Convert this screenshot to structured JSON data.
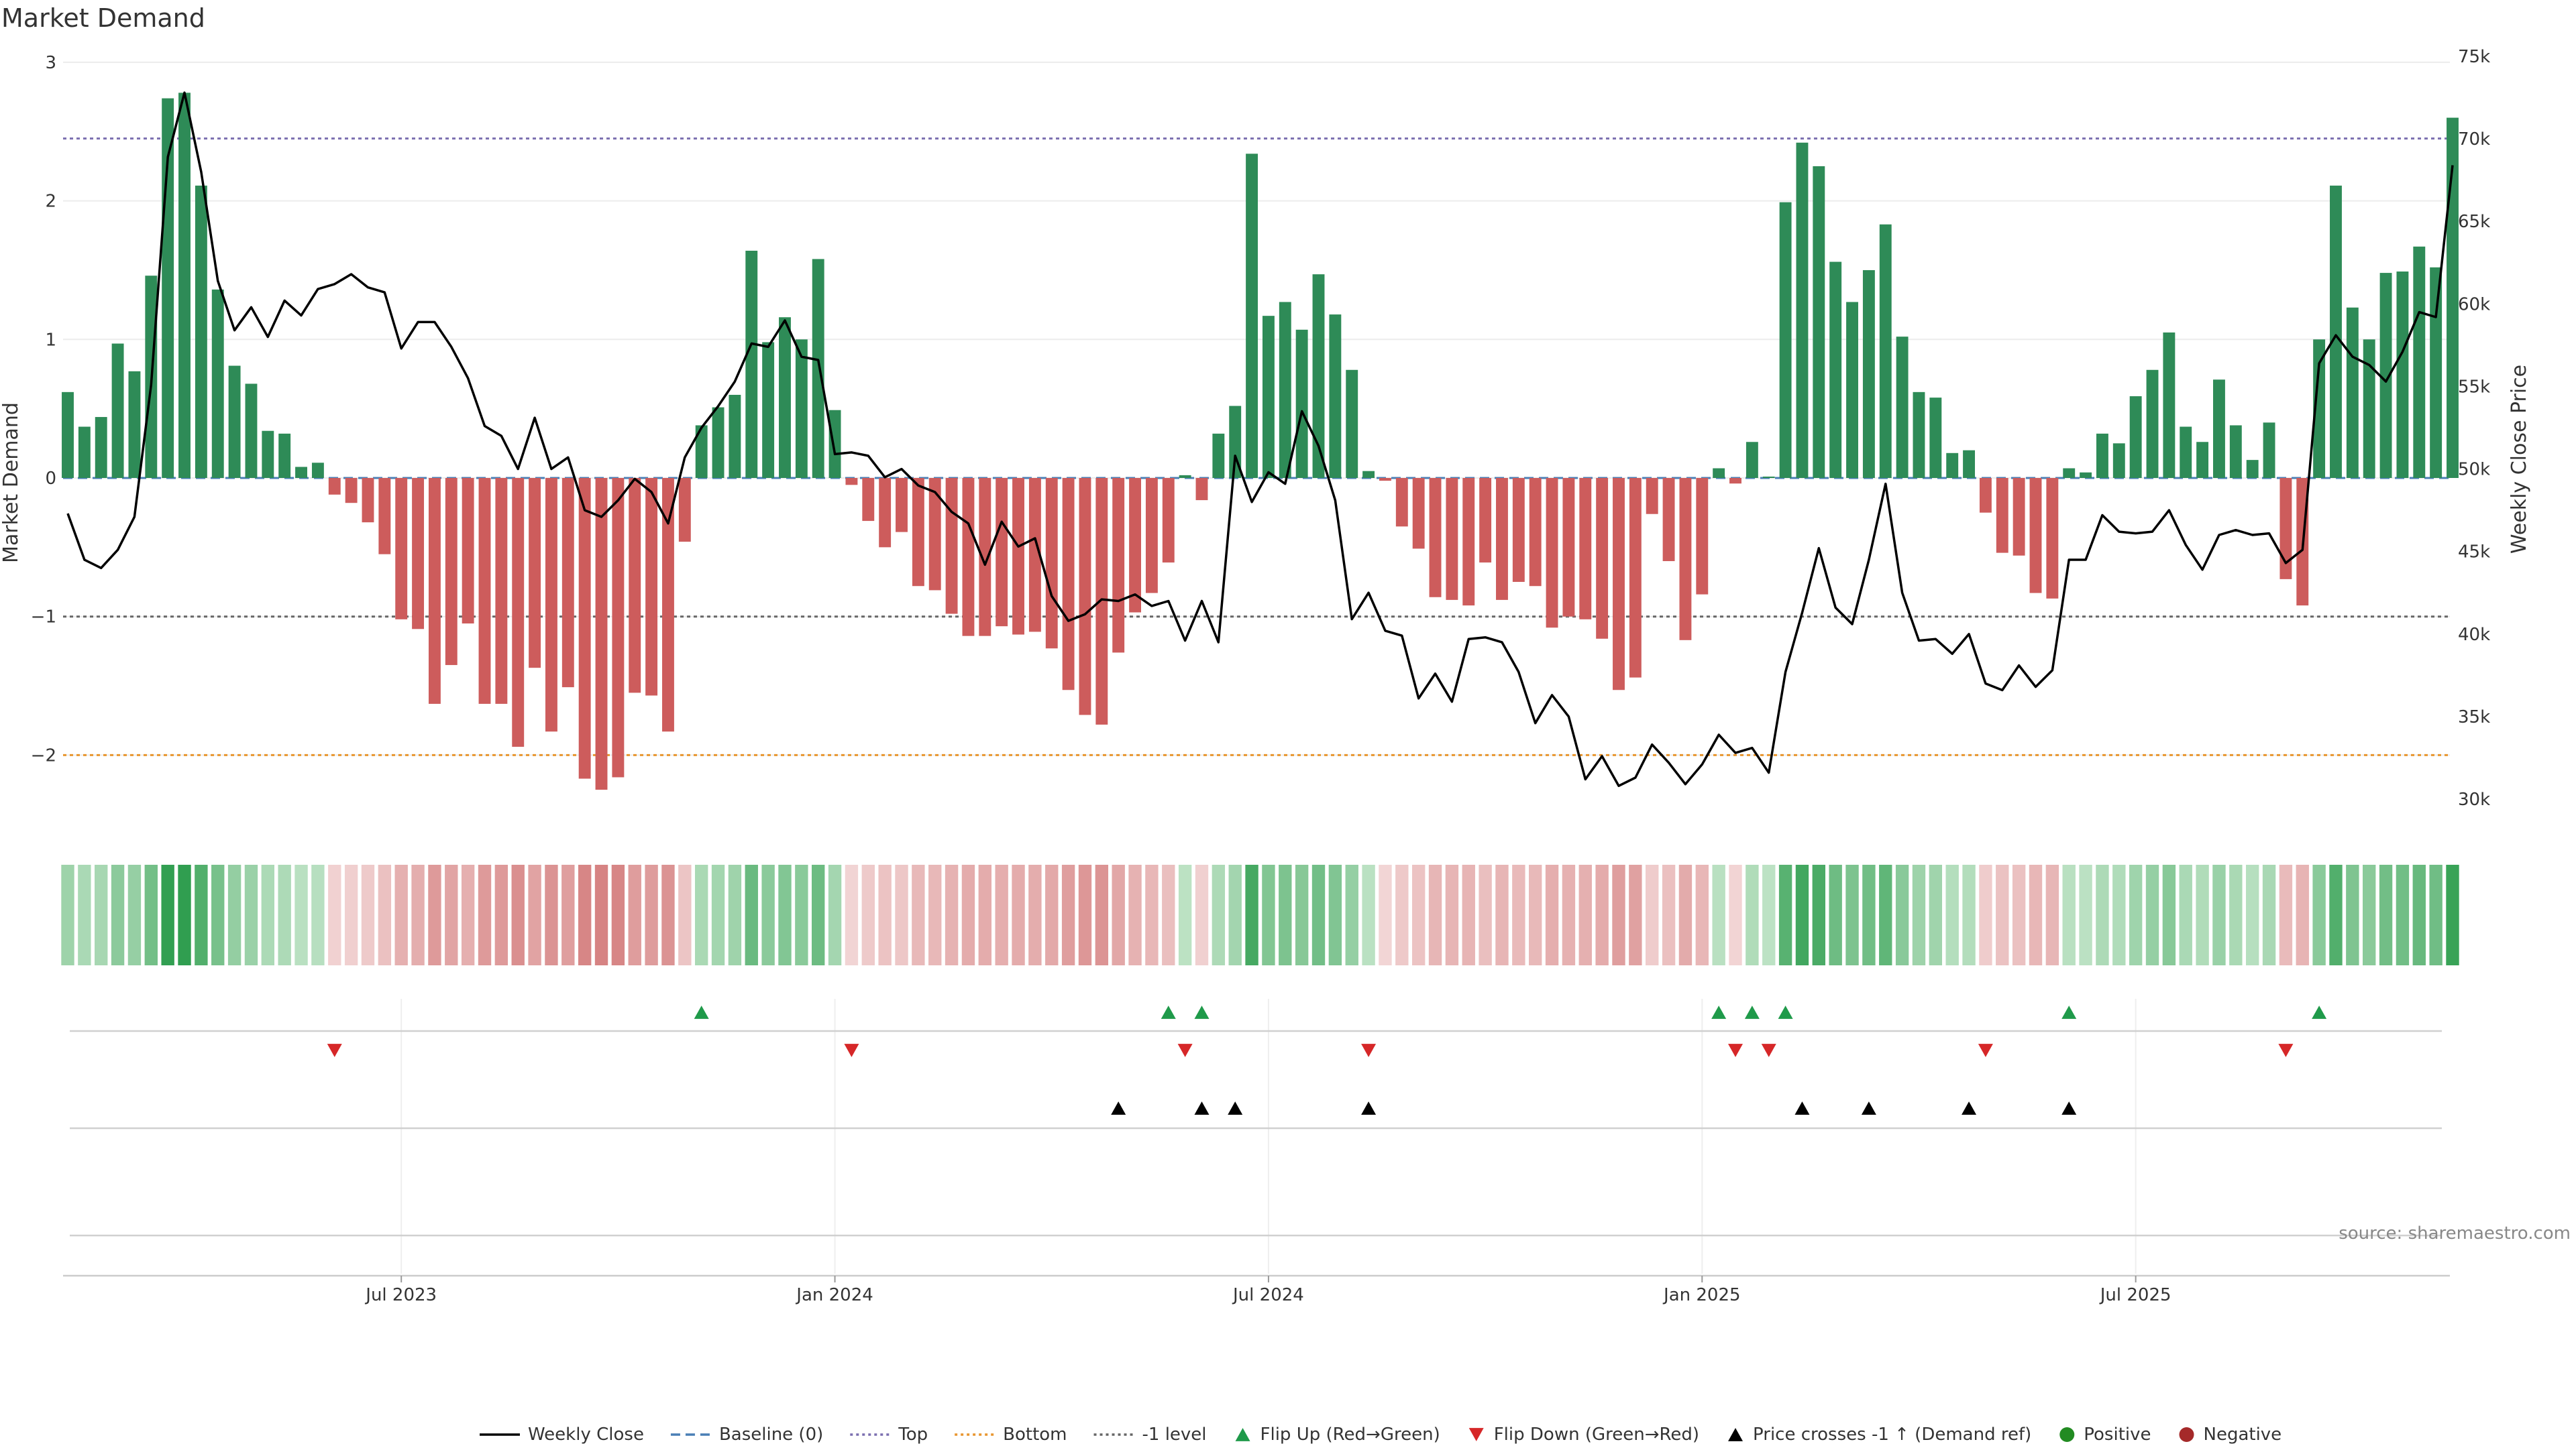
{
  "chart_data": {
    "type": "bar",
    "title": "Market Demand",
    "ylabel_left": "Market Demand",
    "ylabel_right": "Weekly Close Price",
    "ylim_left": [
      -2.5,
      3
    ],
    "ylim_right": [
      28000,
      75000
    ],
    "left_ticks": [
      {
        "v": 3,
        "label": "3"
      },
      {
        "v": 2,
        "label": "2"
      },
      {
        "v": 1,
        "label": "1"
      },
      {
        "v": 0,
        "label": "0"
      },
      {
        "v": -1,
        "label": "−1"
      },
      {
        "v": -2,
        "label": "−2"
      }
    ],
    "right_ticks": [
      {
        "v": 75000,
        "label": "75k"
      },
      {
        "v": 70000,
        "label": "70k"
      },
      {
        "v": 65000,
        "label": "65k"
      },
      {
        "v": 60000,
        "label": "60k"
      },
      {
        "v": 55000,
        "label": "55k"
      },
      {
        "v": 50000,
        "label": "50k"
      },
      {
        "v": 45000,
        "label": "45k"
      },
      {
        "v": 40000,
        "label": "40k"
      },
      {
        "v": 35000,
        "label": "35k"
      },
      {
        "v": 30000,
        "label": "30k"
      }
    ],
    "x_ticks": [
      {
        "label": "Jul 2023",
        "week": 20
      },
      {
        "label": "Jan 2024",
        "week": 46
      },
      {
        "label": "Jul 2024",
        "week": 72
      },
      {
        "label": "Jan 2025",
        "week": 98
      },
      {
        "label": "Jul 2025",
        "week": 124
      }
    ],
    "reference_lines": {
      "top": 2.45,
      "baseline": 0,
      "minus_one": -1,
      "bottom": -2.0
    },
    "demand": [
      0.62,
      0.37,
      0.44,
      0.97,
      0.77,
      1.46,
      2.74,
      2.78,
      2.11,
      1.36,
      0.81,
      0.68,
      0.34,
      0.32,
      0.08,
      0.11,
      -0.12,
      -0.18,
      -0.32,
      -0.55,
      -1.02,
      -1.09,
      -1.63,
      -1.35,
      -1.05,
      -1.63,
      -1.63,
      -1.94,
      -1.37,
      -1.83,
      -1.51,
      -2.17,
      -2.25,
      -2.16,
      -1.55,
      -1.57,
      -1.83,
      -0.46,
      0.38,
      0.51,
      0.6,
      1.64,
      0.98,
      1.16,
      1.0,
      1.58,
      0.49,
      -0.05,
      -0.31,
      -0.5,
      -0.39,
      -0.78,
      -0.81,
      -0.98,
      -1.14,
      -1.14,
      -1.07,
      -1.13,
      -1.11,
      -1.23,
      -1.53,
      -1.71,
      -1.78,
      -1.26,
      -0.97,
      -0.83,
      -0.61,
      0.02,
      -0.16,
      0.32,
      0.52,
      2.34,
      1.17,
      1.27,
      1.07,
      1.47,
      1.18,
      0.78,
      0.05,
      -0.02,
      -0.35,
      -0.51,
      -0.86,
      -0.88,
      -0.92,
      -0.61,
      -0.88,
      -0.75,
      -0.78,
      -1.08,
      -1.0,
      -1.02,
      -1.16,
      -1.53,
      -1.44,
      -0.26,
      -0.6,
      -1.17,
      -0.84,
      0.07,
      -0.04,
      0.26,
      0.01,
      1.99,
      2.42,
      2.25,
      1.56,
      1.27,
      1.5,
      1.83,
      1.02,
      0.62,
      0.58,
      0.18,
      0.2,
      -0.25,
      -0.54,
      -0.56,
      -0.83,
      -0.87,
      0.07,
      0.04,
      0.32,
      0.25,
      0.59,
      0.78,
      1.05,
      0.37,
      0.26,
      0.71,
      0.38,
      0.13,
      0.4,
      -0.73,
      -0.92,
      1.0,
      2.11,
      1.23,
      1.0,
      1.48,
      1.49,
      1.67,
      1.52,
      2.6
    ],
    "weekly_close": [
      47300,
      44500,
      44000,
      45100,
      47100,
      55100,
      68900,
      72800,
      68000,
      61400,
      58400,
      59800,
      58000,
      60200,
      59300,
      60900,
      61200,
      61800,
      61000,
      60700,
      57300,
      58900,
      58900,
      57400,
      55500,
      52600,
      52000,
      50000,
      53100,
      50000,
      50700,
      47500,
      47100,
      48100,
      49400,
      48600,
      46700,
      50700,
      52500,
      53800,
      55300,
      57600,
      57400,
      59000,
      56800,
      56600,
      50900,
      51000,
      50800,
      49500,
      50000,
      49000,
      48600,
      47400,
      46700,
      44200,
      46800,
      45300,
      45800,
      42300,
      40800,
      41200,
      42100,
      42000,
      42400,
      41700,
      42000,
      39600,
      42000,
      39500,
      50800,
      48000,
      49800,
      49100,
      53500,
      51400,
      48100,
      40900,
      42500,
      40200,
      39900,
      36100,
      37600,
      35900,
      39700,
      39800,
      39500,
      37700,
      34600,
      36300,
      35000,
      31200,
      32600,
      30800,
      31300,
      33300,
      32200,
      30900,
      32100,
      33900,
      32800,
      33100,
      31600,
      37700,
      41300,
      45200,
      41600,
      40600,
      44500,
      49100,
      42500,
      39600,
      39700,
      38800,
      40000,
      37000,
      36600,
      38100,
      36800,
      37800,
      44500,
      44500,
      47200,
      46200,
      46100,
      46200,
      47500,
      45400,
      43900,
      46000,
      46300,
      46000,
      46100,
      44300,
      45100,
      56400,
      58100,
      56800,
      56300,
      55300,
      57100,
      59500,
      59200,
      68400
    ],
    "heat_strip": {
      "note": "color intensity per week follows demand magnitude and sign"
    },
    "flip_up_weeks": [
      38,
      66,
      68,
      99,
      101,
      103,
      120,
      135
    ],
    "flip_down_weeks": [
      16,
      47,
      67,
      78,
      100,
      102,
      115,
      133
    ],
    "price_cross_weeks": [
      63,
      68,
      70,
      78,
      104,
      108,
      114,
      120
    ],
    "colors": {
      "positive_bar": "#2e8b57",
      "negative_bar": "#cd5c5c",
      "price_line": "#000000",
      "baseline": "#4a7fb5",
      "top_line": "#7b6fb0",
      "bottom_line": "#e8962f",
      "minus_one_line": "#666666",
      "flip_up": "#1f9a4a",
      "flip_down": "#d62728",
      "price_cross": "#000000",
      "positive_dot": "#228b22",
      "negative_dot": "#a52a2a"
    }
  },
  "legend": [
    {
      "label": "Weekly Close",
      "kind": "line",
      "color": "#000000",
      "dash": ""
    },
    {
      "label": "Baseline (0)",
      "kind": "line",
      "color": "#4a7fb5",
      "dash": "14,8"
    },
    {
      "label": "Top",
      "kind": "line",
      "color": "#7b6fb0",
      "dash": "4,5"
    },
    {
      "label": "Bottom",
      "kind": "line",
      "color": "#e8962f",
      "dash": "4,5"
    },
    {
      "label": "-1 level",
      "kind": "line",
      "color": "#666666",
      "dash": "4,5"
    },
    {
      "label": "Flip Up (Red→Green)",
      "kind": "tri-up",
      "color": "#1f9a4a"
    },
    {
      "label": "Flip Down (Green→Red)",
      "kind": "tri-down",
      "color": "#d62728"
    },
    {
      "label": "Price crosses -1 ↑ (Demand ref)",
      "kind": "tri-up",
      "color": "#000000"
    },
    {
      "label": "Positive",
      "kind": "dot",
      "color": "#228b22"
    },
    {
      "label": "Negative",
      "kind": "dot",
      "color": "#a52a2a"
    }
  ],
  "source": "source: sharemaestro.com"
}
